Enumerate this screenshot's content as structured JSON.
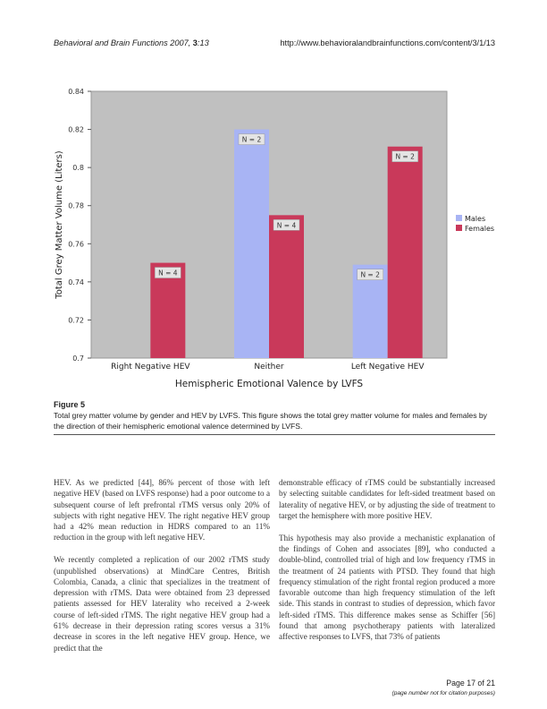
{
  "header": {
    "journal": "Behavioral and Brain Functions",
    "year_issue_prefix": " 2007, ",
    "volume": "3",
    "article": ":13",
    "url": "http://www.behavioralandbrainfunctions.com/content/3/1/13"
  },
  "chart_data": {
    "type": "bar",
    "title": "",
    "xlabel": "Hemispheric Emotional Valence by LVFS",
    "ylabel": "Total Grey Matter Volume (Liters)",
    "ylim": [
      0.7,
      0.84
    ],
    "yticks": [
      "0.7",
      "0.72",
      "0.74",
      "0.76",
      "0.78",
      "0.8",
      "0.82",
      "0.84"
    ],
    "categories": [
      "Right Negative HEV",
      "Neither",
      "Left Negative HEV"
    ],
    "series": [
      {
        "name": "Males",
        "color": "#a8b4f4",
        "values": [
          null,
          0.82,
          0.749
        ],
        "labels": [
          "",
          "N = 2",
          "N = 2"
        ]
      },
      {
        "name": "Females",
        "color": "#c9395a",
        "values": [
          0.75,
          0.775,
          0.811
        ],
        "labels": [
          "N = 4",
          "N = 4",
          "N = 2"
        ]
      }
    ],
    "grid": false,
    "legend_position": "right",
    "plot_background": "#c0c0c0"
  },
  "figure": {
    "label": "Figure 5",
    "caption": "Total grey matter volume by gender and HEV by LVFS. This figure shows the total grey matter volume for males and females by the direction of their hemispheric emotional valence determined by LVFS."
  },
  "body": {
    "left": [
      "HEV. As we predicted [44], 86% percent of those with left negative HEV (based on LVFS response) had a poor outcome to a subsequent course of left prefrontal rTMS versus only 20% of subjects with right negative HEV. The right negative HEV group had a 42% mean reduction in HDRS compared to an 11% reduction in the group with left negative HEV.",
      "We recently completed a replication of our 2002 rTMS study (unpublished observations) at MindCare Centres, British Colombia, Canada, a clinic that specializes in the treatment of depression with rTMS. Data were obtained from 23 depressed patients assessed for HEV laterality who received a 2-week course of left-sided rTMS. The right negative HEV group had a 61% decrease in their depression rating scores versus a 31% decrease in scores in the left negative HEV group. Hence, we predict that the"
    ],
    "right": [
      "demonstrable efficacy of rTMS could be substantially increased by selecting suitable candidates for left-sided treatment based on laterality of negative HEV, or by adjusting the side of treatment to target the hemisphere with more positive HEV.",
      "This hypothesis may also provide a mechanistic explanation of the findings of Cohen and associates [89], who conducted a double-blind, controlled trial of high and low frequency rTMS in the treatment of 24 patients with PTSD. They found that high frequency stimulation of the right frontal region produced a more favorable outcome than high frequency stimulation of the left side. This stands in contrast to studies of depression, which favor left-sided rTMS. This difference makes sense as Schiffer [56] found that among psychotherapy patients with lateralized affective responses to LVFS, that 73% of patients"
    ]
  },
  "footer": {
    "page": "Page 17 of 21",
    "note": "(page number not for citation purposes)"
  }
}
